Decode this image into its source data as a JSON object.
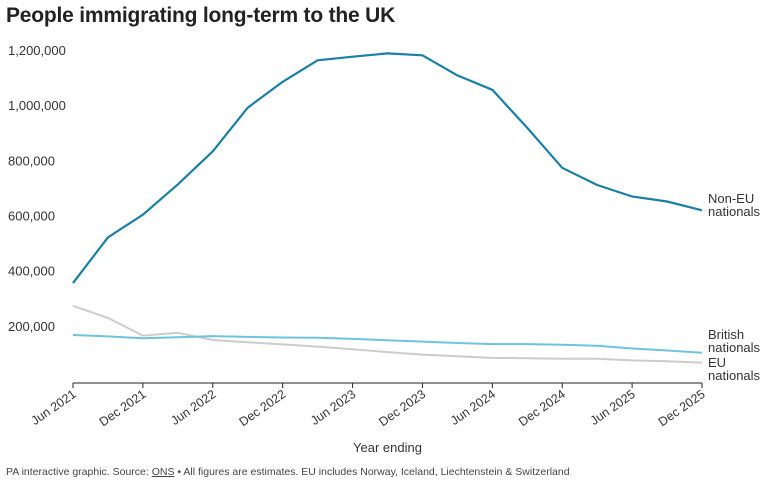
{
  "chart_data": {
    "type": "line",
    "title": "People immigrating long-term to the UK",
    "xlabel": "Year ending",
    "ylabel": "",
    "ylim": [
      0,
      1200000
    ],
    "grid": false,
    "x": [
      "Jun 2021",
      "Sep 2021",
      "Dec 2021",
      "Mar 2022",
      "Jun 2022",
      "Sep 2022",
      "Dec 2022",
      "Mar 2023",
      "Jun 2023",
      "Sep 2023",
      "Dec 2023",
      "Mar 2024",
      "Jun 2024",
      "Sep 2024",
      "Dec 2024",
      "Mar 2025",
      "Jun 2025",
      "Sep 2025",
      "Dec 2025"
    ],
    "x_tick_labels": [
      "Jun 2021",
      "Dec 2021",
      "Jun 2022",
      "Dec 2022",
      "Jun 2023",
      "Dec 2023",
      "Jun 2024",
      "Dec 2024",
      "Jun 2025",
      "Dec 2025"
    ],
    "y_tick_labels": [
      "200,000",
      "400,000",
      "600,000",
      "800,000",
      "1,000,000",
      "1,200,000"
    ],
    "y_ticks": [
      200000,
      400000,
      600000,
      800000,
      1000000,
      1200000
    ],
    "series": [
      {
        "name": "Non-EU nationals",
        "label_lines": [
          "Non-EU",
          "nationals"
        ],
        "color": "#1a7fa6",
        "values": [
          362000,
          528000,
          610000,
          720000,
          840000,
          998000,
          1092000,
          1170000,
          1183000,
          1195000,
          1188000,
          1115000,
          1063000,
          925000,
          780000,
          718000,
          676000,
          658000,
          626000
        ]
      },
      {
        "name": "British nationals",
        "label_lines": [
          "British",
          "nationals"
        ],
        "color": "#6ec3df",
        "values": [
          174000,
          169000,
          162000,
          166000,
          170000,
          167000,
          165000,
          164000,
          160000,
          155000,
          150000,
          145000,
          141000,
          141000,
          139000,
          135000,
          125000,
          118000,
          110000
        ]
      },
      {
        "name": "EU nationals",
        "label_lines": [
          "EU",
          "nationals"
        ],
        "color": "#cccccc",
        "values": [
          280000,
          236000,
          172000,
          182000,
          156000,
          148000,
          140000,
          132000,
          122000,
          112000,
          103000,
          97000,
          91000,
          90000,
          88000,
          88000,
          82000,
          79000,
          74000
        ]
      }
    ]
  },
  "footer": {
    "prefix": "PA interactive graphic. Source: ",
    "source_link": "ONS",
    "suffix": " • All figures are estimates. EU includes Norway, Iceland, Liechtenstein & Switzerland"
  }
}
